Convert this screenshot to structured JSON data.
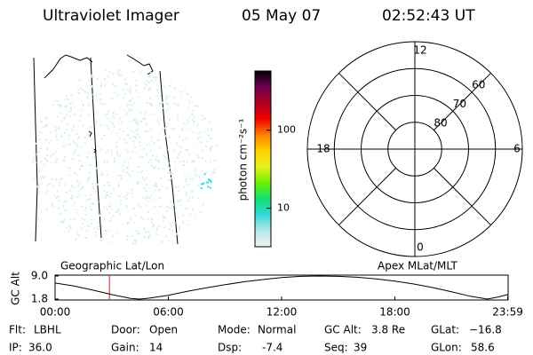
{
  "header": {
    "title": "Ultraviolet Imager",
    "date": "05 May 07",
    "time": "02:52:43 UT"
  },
  "map": {
    "label": "Geographic Lat/Lon"
  },
  "colorbar": {
    "label": "photon cm⁻²s⁻¹",
    "log": true,
    "ylim": [
      3.2,
      575
    ],
    "yticks": [
      10,
      100
    ],
    "colors": [
      "#f2f2f2",
      "#b8e8e8",
      "#30d8d8",
      "#10e070",
      "#70f000",
      "#e8f020",
      "#ffd000",
      "#ff8000",
      "#f00000",
      "#b00020",
      "#700050",
      "#000000"
    ]
  },
  "polar": {
    "label": "Apex MLat/MLT",
    "rlim": [
      90,
      50
    ],
    "rticks": [
      80,
      70,
      60
    ],
    "thetaticks": [
      12,
      18,
      0,
      6
    ]
  },
  "chart_data": {
    "type": "line",
    "ylabel": "GC Alt",
    "color": "#000000",
    "marker_color": "#d02020",
    "current_time": 2.88,
    "x": [
      0,
      1,
      2,
      3,
      4,
      4.5,
      5,
      6,
      7,
      8,
      9,
      10,
      11,
      12,
      13,
      14,
      15,
      16,
      17,
      18,
      19,
      20,
      21,
      22,
      22.9,
      23.5,
      23.98
    ],
    "values": [
      6.8,
      5.9,
      4.6,
      3.2,
      2.0,
      1.8,
      2.1,
      3.0,
      4.2,
      5.3,
      6.3,
      7.2,
      7.9,
      8.5,
      8.9,
      9.0,
      8.9,
      8.6,
      8.1,
      7.4,
      6.5,
      5.4,
      4.1,
      2.7,
      1.8,
      2.5,
      3.2
    ],
    "xlim": [
      0,
      24
    ],
    "ylim": [
      1.8,
      9.0
    ],
    "xticks": [
      {
        "value": 0,
        "label": "00:00"
      },
      {
        "value": 6,
        "label": "06:00"
      },
      {
        "value": 12,
        "label": "12:00"
      },
      {
        "value": 18,
        "label": "18:00"
      },
      {
        "value": 23.98,
        "label": "23:59"
      }
    ],
    "yticks": [
      {
        "value": 9.0,
        "label": "9.0"
      },
      {
        "value": 1.8,
        "label": "1.8"
      }
    ]
  },
  "footer": {
    "rows": [
      [
        [
          "Flt:",
          "LBHL"
        ],
        [
          "Door:",
          "Open"
        ],
        [
          "Mode:",
          "Normal"
        ],
        [
          "GC Alt:",
          "3.8 Re"
        ],
        [
          "GLat:",
          "−16.8"
        ]
      ],
      [
        [
          "IP:",
          "36.0"
        ],
        [
          "Gain:",
          "14"
        ],
        [
          "Dsp:",
          "-7.4"
        ],
        [
          "Seq:",
          "39"
        ],
        [
          "GLon:",
          "58.6"
        ]
      ]
    ]
  }
}
